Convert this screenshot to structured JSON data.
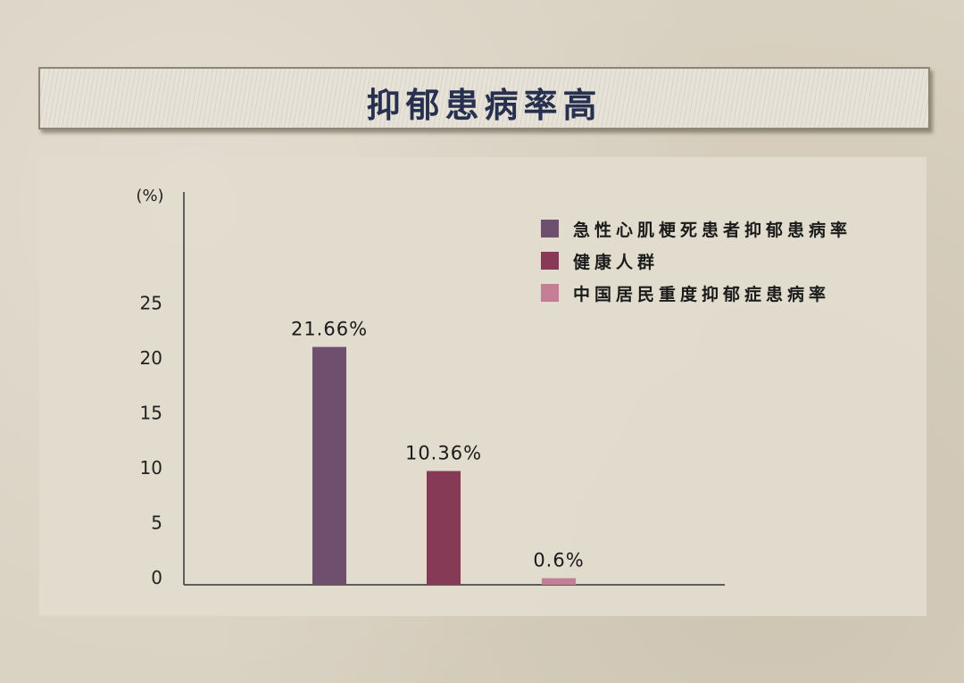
{
  "title": "抑郁患病率高",
  "chart_data": {
    "type": "bar",
    "ylabel": "(%)",
    "ylim": [
      0,
      25
    ],
    "yticks": [
      0,
      5,
      10,
      15,
      20,
      25
    ],
    "grid": false,
    "legend_placement": "top-right",
    "series": [
      {
        "name": "急性心肌梗死患者抑郁患病率",
        "value": 21.66,
        "label": "21.66%",
        "color": "#6e4f6e"
      },
      {
        "name": "健康人群",
        "value": 10.36,
        "label": "10.36%",
        "color": "#873a55"
      },
      {
        "name": "中国居民重度抑郁症患病率",
        "value": 0.6,
        "label": "0.6%",
        "color": "#c47f96"
      }
    ]
  }
}
